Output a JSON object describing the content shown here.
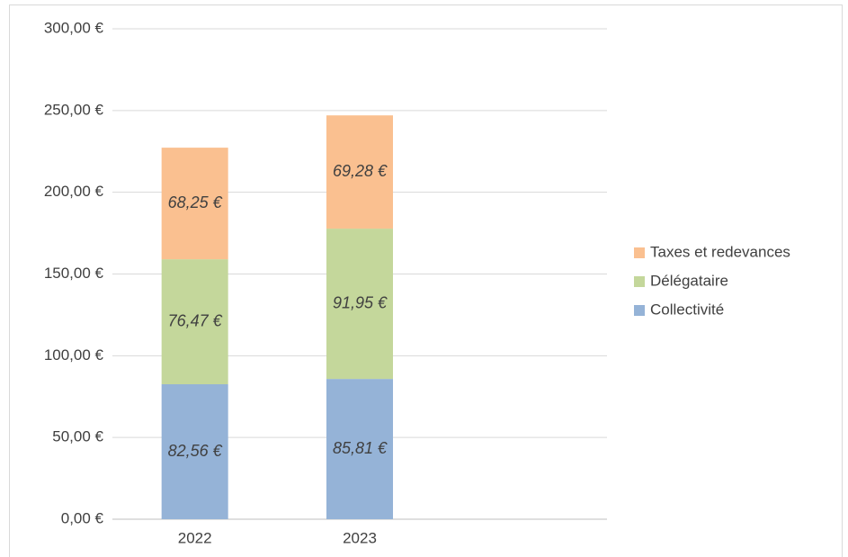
{
  "chart_data": {
    "type": "stacked_bar",
    "categories": [
      "2022",
      "2023",
      null
    ],
    "series": [
      {
        "name": "Collectivité",
        "color": "#95b3d7",
        "values": [
          82.56,
          85.81,
          null
        ],
        "value_labels": [
          "82,56 €",
          "85,81 €",
          null
        ]
      },
      {
        "name": "Délégataire",
        "color": "#c4d79b",
        "values": [
          76.47,
          91.95,
          null
        ],
        "value_labels": [
          "76,47 €",
          "91,95 €",
          null
        ]
      },
      {
        "name": "Taxes et redevances",
        "color": "#fac090",
        "values": [
          68.25,
          69.28,
          null
        ],
        "value_labels": [
          "68,25 €",
          "69,28 €",
          null
        ]
      }
    ],
    "ylim": [
      0,
      300
    ],
    "yticks": [
      {
        "value": 0,
        "label": "0,00 €"
      },
      {
        "value": 50,
        "label": "50,00 €"
      },
      {
        "value": 100,
        "label": "100,00 €"
      },
      {
        "value": 150,
        "label": "150,00 €"
      },
      {
        "value": 200,
        "label": "200,00 €"
      },
      {
        "value": 250,
        "label": "250,00 €"
      },
      {
        "value": 300,
        "label": "300,00 €"
      }
    ],
    "grid": true,
    "legend": "right"
  }
}
